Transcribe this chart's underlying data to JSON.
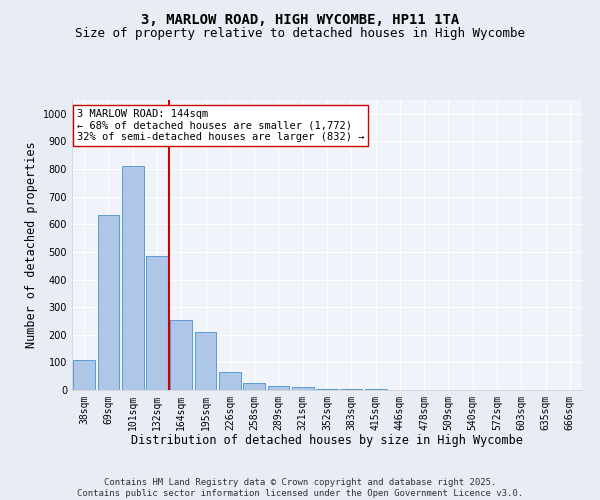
{
  "title1": "3, MARLOW ROAD, HIGH WYCOMBE, HP11 1TA",
  "title2": "Size of property relative to detached houses in High Wycombe",
  "xlabel": "Distribution of detached houses by size in High Wycombe",
  "ylabel": "Number of detached properties",
  "categories": [
    "38sqm",
    "69sqm",
    "101sqm",
    "132sqm",
    "164sqm",
    "195sqm",
    "226sqm",
    "258sqm",
    "289sqm",
    "321sqm",
    "352sqm",
    "383sqm",
    "415sqm",
    "446sqm",
    "478sqm",
    "509sqm",
    "540sqm",
    "572sqm",
    "603sqm",
    "635sqm",
    "666sqm"
  ],
  "values": [
    110,
    633,
    810,
    485,
    255,
    210,
    65,
    25,
    15,
    10,
    5,
    5,
    5,
    0,
    0,
    0,
    0,
    0,
    0,
    0,
    0
  ],
  "bar_color": "#aec6e8",
  "bar_edge_color": "#5b9bd5",
  "vline_pos": 3.5,
  "vline_color": "#cc0000",
  "annotation_text": "3 MARLOW ROAD: 144sqm\n← 68% of detached houses are smaller (1,772)\n32% of semi-detached houses are larger (832) →",
  "annotation_box_color": "white",
  "annotation_box_edge": "#cc0000",
  "ylim": [
    0,
    1050
  ],
  "yticks": [
    0,
    100,
    200,
    300,
    400,
    500,
    600,
    700,
    800,
    900,
    1000
  ],
  "footer": "Contains HM Land Registry data © Crown copyright and database right 2025.\nContains public sector information licensed under the Open Government Licence v3.0.",
  "bg_color": "#e8ecf5",
  "plot_bg_color": "#f0f3fa",
  "grid_color": "#ffffff",
  "title_fontsize": 10,
  "subtitle_fontsize": 9,
  "axis_label_fontsize": 8.5,
  "tick_fontsize": 7,
  "footer_fontsize": 6.5,
  "annotation_fontsize": 7.5
}
